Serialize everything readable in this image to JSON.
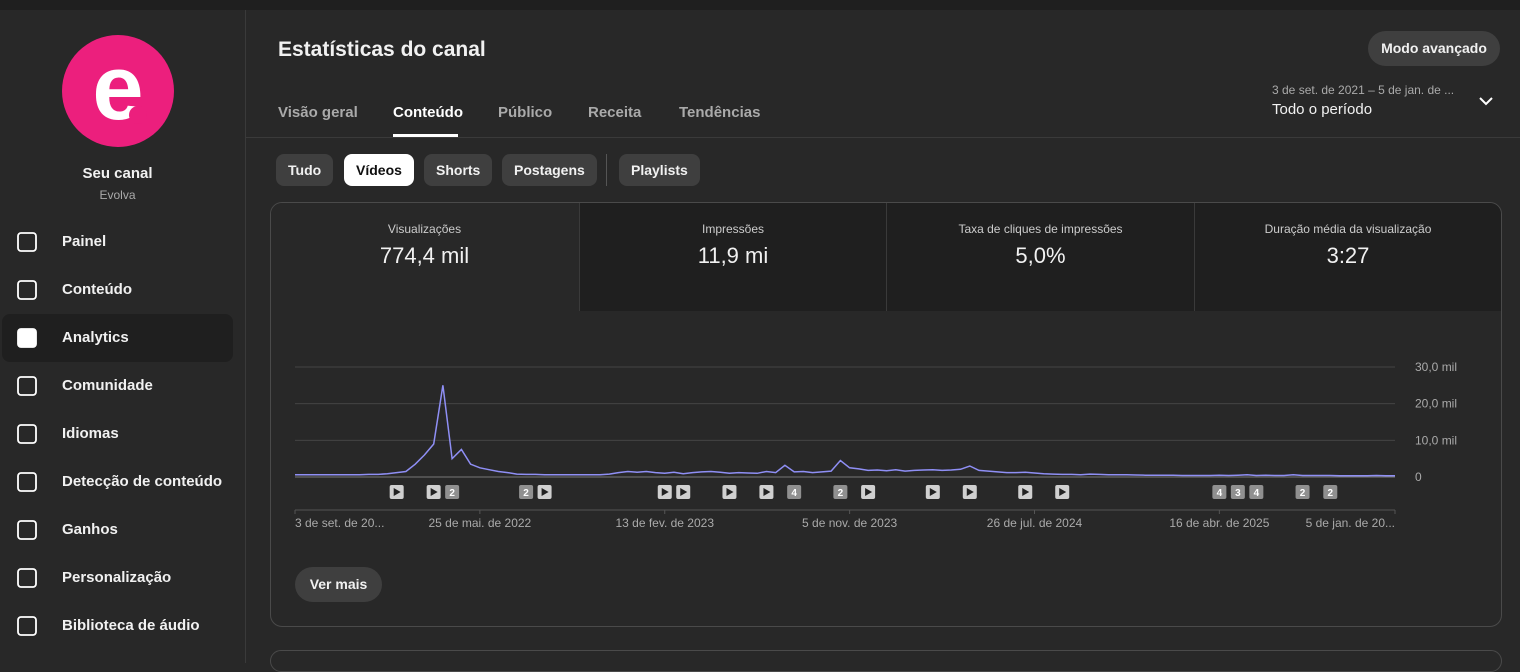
{
  "sidebar": {
    "channel_title": "Seu canal",
    "channel_name": "Evolva",
    "nav": [
      "Painel",
      "Conteúdo",
      "Analytics",
      "Comunidade",
      "Idiomas",
      "Detecção de conteúdo",
      "Ganhos",
      "Personalização",
      "Biblioteca de áudio"
    ]
  },
  "header": {
    "title": "Estatísticas do canal",
    "advanced_button": "Modo avançado",
    "date_range": "3 de set. de 2021 – 5 de jan. de ...",
    "period": "Todo o período"
  },
  "tabs": [
    "Visão geral",
    "Conteúdo",
    "Público",
    "Receita",
    "Tendências"
  ],
  "filters": [
    "Tudo",
    "Vídeos",
    "Shorts",
    "Postagens",
    "Playlists"
  ],
  "metrics": [
    {
      "label": "Visualizações",
      "value": "774,4 mil"
    },
    {
      "label": "Impressões",
      "value": "11,9 mi"
    },
    {
      "label": "Taxa de cliques de impressões",
      "value": "5,0%"
    },
    {
      "label": "Duração média da visualização",
      "value": "3:27"
    }
  ],
  "chart_data": {
    "type": "line",
    "color": "#8f8ff5",
    "categories": [
      "3 de set. de 20...",
      null,
      null,
      null,
      null,
      null,
      null,
      null,
      null,
      null,
      null,
      null,
      null,
      null,
      null,
      null,
      null,
      null,
      null,
      null,
      "25 de mai. de 2022",
      null,
      null,
      null,
      null,
      null,
      null,
      null,
      null,
      null,
      null,
      null,
      null,
      null,
      null,
      null,
      null,
      null,
      null,
      null,
      "13 de fev. de 2023",
      null,
      null,
      null,
      null,
      null,
      null,
      null,
      null,
      null,
      null,
      null,
      null,
      null,
      null,
      null,
      null,
      null,
      null,
      null,
      "5 de nov. de 2023",
      null,
      null,
      null,
      null,
      null,
      null,
      null,
      null,
      null,
      null,
      null,
      null,
      null,
      null,
      null,
      null,
      null,
      null,
      null,
      "26 de jul. de 2024",
      null,
      null,
      null,
      null,
      null,
      null,
      null,
      null,
      null,
      null,
      null,
      null,
      null,
      null,
      null,
      null,
      null,
      null,
      null,
      "16 de abr. de 2025",
      null,
      null,
      null,
      null,
      null,
      null,
      null,
      null,
      null,
      null,
      null,
      null,
      null,
      null,
      null,
      null,
      null,
      null,
      "5 de jan. de 20..."
    ],
    "values": [
      600,
      600,
      600,
      600,
      600,
      600,
      600,
      600,
      700,
      700,
      900,
      1200,
      1500,
      3500,
      6000,
      9000,
      25000,
      5000,
      7500,
      3500,
      2500,
      2000,
      1500,
      1200,
      800,
      700,
      700,
      600,
      600,
      600,
      600,
      600,
      600,
      600,
      800,
      1200,
      1500,
      1300,
      1500,
      1200,
      1000,
      1300,
      900,
      1200,
      1400,
      1500,
      1300,
      1000,
      1200,
      1100,
      1000,
      1500,
      1200,
      3200,
      1400,
      1500,
      1200,
      1400,
      1600,
      4500,
      2500,
      2200,
      1800,
      1900,
      1700,
      2000,
      1600,
      1800,
      1900,
      2000,
      1800,
      1900,
      2100,
      3000,
      1800,
      1600,
      1400,
      1200,
      1200,
      1300,
      1100,
      900,
      800,
      700,
      700,
      600,
      800,
      700,
      600,
      600,
      600,
      550,
      500,
      500,
      450,
      450,
      400,
      400,
      400,
      400,
      450,
      400,
      500,
      600,
      400,
      500,
      400,
      400,
      600,
      400,
      400,
      400,
      400,
      350,
      350,
      350,
      350,
      400,
      350,
      350
    ],
    "ylim": [
      0,
      30000
    ],
    "yticks": [
      0,
      {
        "value": 10000,
        "label": "10,0 mil"
      },
      {
        "value": 20000,
        "label": "20,0 mil"
      },
      {
        "value": 30000,
        "label": "30,0 mil"
      }
    ],
    "grid": true,
    "markers": [
      {
        "at": 11
      },
      {
        "at": 15
      },
      {
        "at": 17,
        "count": 2
      },
      {
        "at": 25,
        "count": 2
      },
      {
        "at": 27
      },
      {
        "at": 40
      },
      {
        "at": 42
      },
      {
        "at": 47
      },
      {
        "at": 51
      },
      {
        "at": 54,
        "count": 4
      },
      {
        "at": 59,
        "count": 2
      },
      {
        "at": 62
      },
      {
        "at": 69
      },
      {
        "at": 73
      },
      {
        "at": 79
      },
      {
        "at": 83
      },
      {
        "at": 100,
        "count": 4
      },
      {
        "at": 102,
        "count": 3
      },
      {
        "at": 104,
        "count": 4
      },
      {
        "at": 109,
        "count": 2
      },
      {
        "at": 112,
        "count": 2
      }
    ]
  },
  "more_button": "Ver mais"
}
